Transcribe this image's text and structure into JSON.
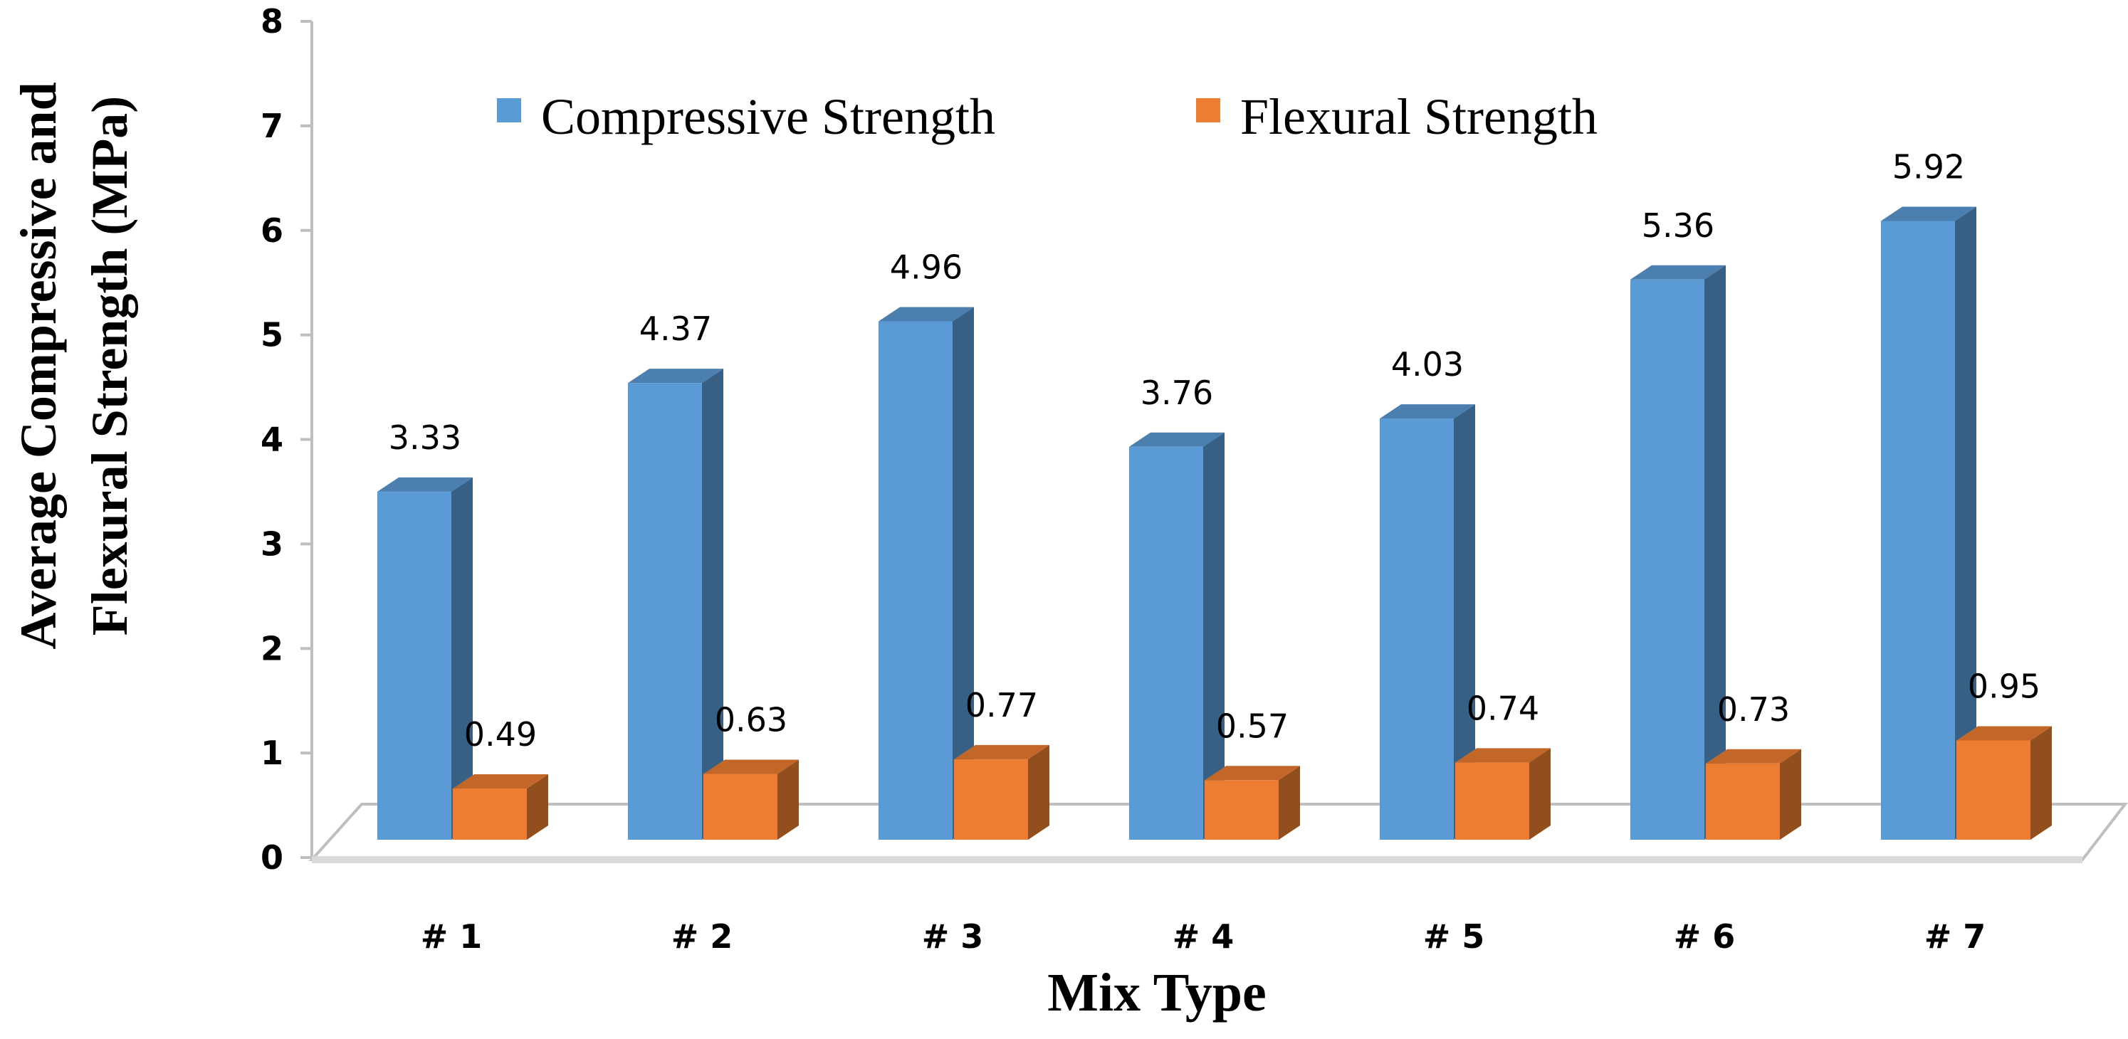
{
  "chart_data": {
    "type": "bar",
    "style": "3d-clustered-column",
    "title": "",
    "xlabel": "Mix Type",
    "ylabel_line1": "Average Compressive and",
    "ylabel_line2": "Flexural Strength (MPa)",
    "ylim": [
      0,
      8
    ],
    "yticks": [
      0,
      1,
      2,
      3,
      4,
      5,
      6,
      7,
      8
    ],
    "grid": false,
    "legend_position": "top",
    "categories": [
      "# 1",
      "# 2",
      "# 3",
      "# 4",
      "# 5",
      "# 6",
      "# 7"
    ],
    "series": [
      {
        "name": "Compressive Strength",
        "color": "#5B9BD5",
        "values": [
          3.33,
          4.37,
          4.96,
          3.76,
          4.03,
          5.36,
          5.92
        ],
        "labels": [
          "3.33",
          "4.37",
          "4.96",
          "3.76",
          "4.03",
          "5.36",
          "5.92"
        ]
      },
      {
        "name": "Flexural Strength",
        "color": "#ED7D31",
        "values": [
          0.49,
          0.63,
          0.77,
          0.57,
          0.74,
          0.73,
          0.95
        ],
        "labels": [
          "0.49",
          "0.63",
          "0.77",
          "0.57",
          "0.74",
          "0.73",
          "0.95"
        ]
      }
    ]
  }
}
